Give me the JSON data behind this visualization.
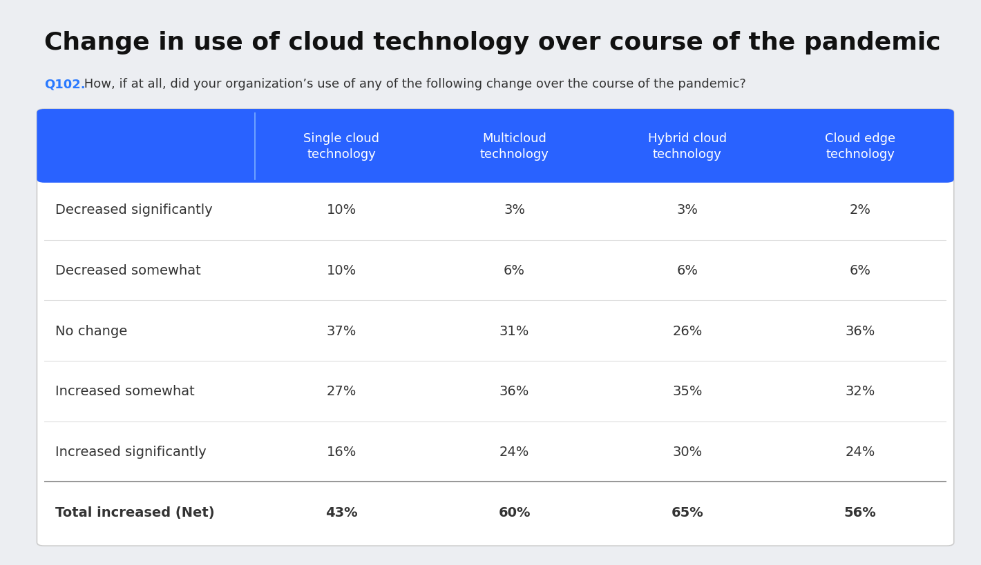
{
  "title": "Change in use of cloud technology over course of the pandemic",
  "subtitle_label": "Q102.",
  "subtitle_text": " How, if at all, did your organization’s use of any of the following change over the course of the pandemic?",
  "col_headers": [
    "Single cloud\ntechnology",
    "Multicloud\ntechnology",
    "Hybrid cloud\ntechnology",
    "Cloud edge\ntechnology"
  ],
  "row_labels": [
    "Decreased significantly",
    "Decreased somewhat",
    "No change",
    "Increased somewhat",
    "Increased significantly",
    "Total increased (Net)"
  ],
  "data": [
    [
      "10%",
      "3%",
      "3%",
      "2%"
    ],
    [
      "10%",
      "6%",
      "6%",
      "6%"
    ],
    [
      "37%",
      "31%",
      "26%",
      "36%"
    ],
    [
      "27%",
      "36%",
      "35%",
      "32%"
    ],
    [
      "16%",
      "24%",
      "30%",
      "24%"
    ],
    [
      "43%",
      "60%",
      "65%",
      "56%"
    ]
  ],
  "header_bg": "#2962FF",
  "header_text_color": "#FFFFFF",
  "row_text_color": "#333333",
  "divider_color": "#CCCCCC",
  "subtitle_label_color": "#2979FF",
  "background_color": "#ECEEF2",
  "card_bg": "#FFFFFF",
  "title_fontsize": 26,
  "subtitle_fontsize": 13,
  "header_fontsize": 13,
  "cell_fontsize": 14,
  "row_label_fontsize": 14
}
